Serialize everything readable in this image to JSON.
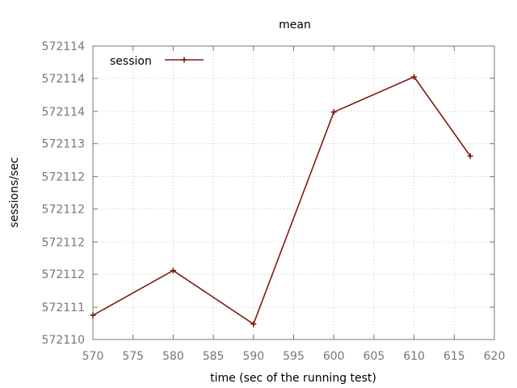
{
  "chart_data": {
    "type": "line",
    "title": "mean",
    "xlabel": "time (sec of the running test)",
    "ylabel": "sessions/sec",
    "xlim": [
      570,
      620
    ],
    "ylim": [
      572110,
      572114
    ],
    "x_ticks": [
      570,
      575,
      580,
      585,
      590,
      595,
      600,
      605,
      610,
      615,
      620
    ],
    "x_tick_labels": [
      "570",
      "575",
      "580",
      "585",
      "590",
      "595",
      "600",
      "605",
      "610",
      "615",
      "620"
    ],
    "y_ticks": [
      572110,
      572110.44,
      572110.89,
      572111.33,
      572111.78,
      572112.22,
      572112.67,
      572113.11,
      572113.56,
      572114
    ],
    "y_tick_labels": [
      "572110",
      "572111",
      "572112",
      "572112",
      "572112",
      "572112",
      "572113",
      "572114",
      "572114",
      "572114"
    ],
    "grid": true,
    "legend_position": "top-left",
    "series": [
      {
        "name": "session",
        "color": "#7f1a12",
        "marker": "plus",
        "x": [
          570,
          580,
          590,
          600,
          610,
          617
        ],
        "y": [
          572110.33,
          572110.94,
          572110.21,
          572113.1,
          572113.58,
          572112.5
        ]
      }
    ]
  }
}
